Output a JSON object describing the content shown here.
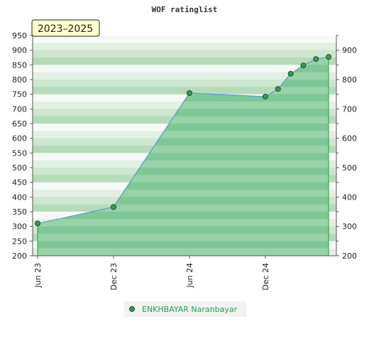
{
  "chart_data": {
    "type": "area",
    "title": "WOF ratinglist",
    "badge": "2023–2025",
    "x_ticks": [
      "Jun 23",
      "Dec 23",
      "Jun 24",
      "Dec 24"
    ],
    "ylim": [
      200,
      950
    ],
    "y_ticks_left": [
      200,
      250,
      300,
      350,
      400,
      450,
      500,
      550,
      600,
      650,
      700,
      750,
      800,
      850,
      900,
      950
    ],
    "y_ticks_right": [
      200,
      300,
      400,
      500,
      600,
      700,
      800,
      900
    ],
    "legend": {
      "placement": "bottom-center"
    },
    "series": [
      {
        "name": "ENKHBAYAR Naranbayar",
        "color": "#2e9a4a",
        "points": [
          {
            "x": "2023-06",
            "y": 310
          },
          {
            "x": "2023-12",
            "y": 366
          },
          {
            "x": "2024-06",
            "y": 754
          },
          {
            "x": "2024-12",
            "y": 742
          },
          {
            "x": "2025-01",
            "y": 768
          },
          {
            "x": "2025-02",
            "y": 820
          },
          {
            "x": "2025-03",
            "y": 848
          },
          {
            "x": "2025-04",
            "y": 870
          },
          {
            "x": "2025-05",
            "y": 877
          }
        ]
      }
    ]
  }
}
